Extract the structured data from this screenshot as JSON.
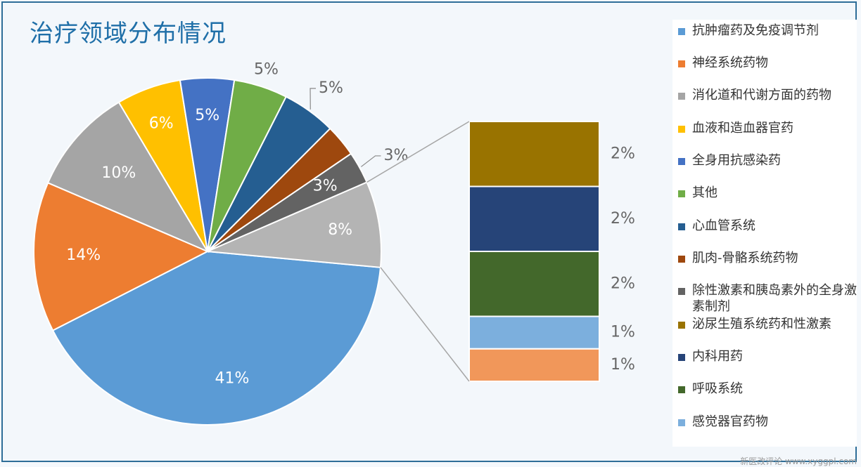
{
  "title": "治疗领域分布情况",
  "watermark": "新医改评论 www.xyggpl.com",
  "chart_data": {
    "type": "pie",
    "title": "治疗领域分布情况",
    "pie": {
      "slices": [
        {
          "name": "抗肿瘤药及免疫调节剂",
          "value": 41,
          "label": "41%",
          "color": "#5b9bd5"
        },
        {
          "name": "神经系统药物",
          "value": 14,
          "label": "14%",
          "color": "#ed7d31"
        },
        {
          "name": "消化道和代谢方面的药物",
          "value": 10,
          "label": "10%",
          "color": "#a5a5a5"
        },
        {
          "name": "血液和造血器官药",
          "value": 6,
          "label": "6%",
          "color": "#ffc000"
        },
        {
          "name": "全身用抗感染药",
          "value": 5,
          "label": "5%",
          "color": "#4472c4"
        },
        {
          "name": "其他",
          "value": 5,
          "label": "5%",
          "color": "#70ad47"
        },
        {
          "name": "心血管系统",
          "value": 5,
          "label": "5%",
          "color": "#255e91"
        },
        {
          "name": "肌肉-骨骼系统药物",
          "value": 3,
          "label": "",
          "color": "#9e480e"
        },
        {
          "name": "除性激素和胰岛素外的全身激素制剂",
          "value": 3,
          "label": "3%",
          "color": "#636363"
        },
        {
          "name": "other-group",
          "value": 8,
          "label": "8%",
          "color": "#b4b4b4"
        }
      ]
    },
    "breakout": {
      "segments": [
        {
          "name": "泌尿生殖系统药和性激素",
          "value": 2,
          "label": "2%",
          "color": "#997300"
        },
        {
          "name": "内科用药",
          "value": 2,
          "label": "2%",
          "color": "#264478"
        },
        {
          "name": "呼吸系统",
          "value": 2,
          "label": "2%",
          "color": "#43682b"
        },
        {
          "name": "感觉器官药物",
          "value": 1,
          "label": "1%",
          "color": "#7cafdd"
        },
        {
          "name": "bar-segment-5",
          "value": 1,
          "label": "1%",
          "color": "#f1975a"
        }
      ]
    },
    "legend": [
      {
        "label": "抗肿瘤药及免疫调节剂",
        "color": "#5b9bd5"
      },
      {
        "label": "神经系统药物",
        "color": "#ed7d31"
      },
      {
        "label": "消化道和代谢方面的药物",
        "color": "#a5a5a5"
      },
      {
        "label": "血液和造血器官药",
        "color": "#ffc000"
      },
      {
        "label": "全身用抗感染药",
        "color": "#4472c4"
      },
      {
        "label": "其他",
        "color": "#70ad47"
      },
      {
        "label": "心血管系统",
        "color": "#255e91"
      },
      {
        "label": "肌肉-骨骼系统药物",
        "color": "#9e480e"
      },
      {
        "label": "除性激素和胰岛素外的全身激素制剂",
        "color": "#636363"
      },
      {
        "label": "泌尿生殖系统药和性激素",
        "color": "#997300"
      },
      {
        "label": "内科用药",
        "color": "#264478"
      },
      {
        "label": "呼吸系统",
        "color": "#43682b"
      },
      {
        "label": "感觉器官药物",
        "color": "#7cafdd"
      }
    ],
    "legend_position": "right"
  }
}
